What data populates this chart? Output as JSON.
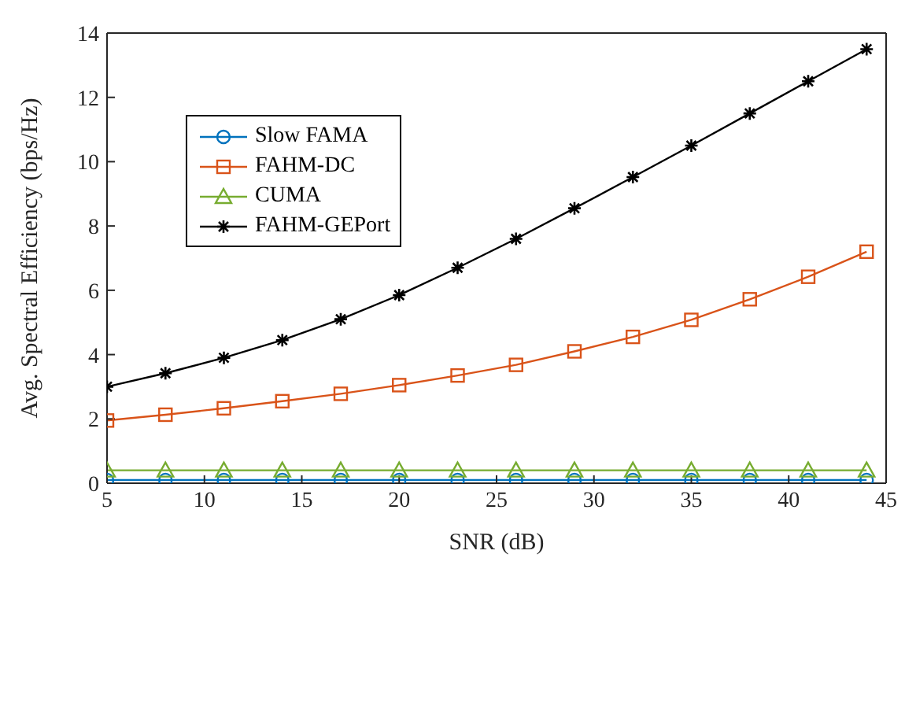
{
  "chart_data": {
    "type": "line",
    "xlabel": "SNR (dB)",
    "ylabel": "Avg. Spectral Efficiency (bps/Hz)",
    "x": [
      5,
      8,
      11,
      14,
      17,
      20,
      23,
      26,
      29,
      32,
      35,
      38,
      41,
      44
    ],
    "xlim": [
      5,
      45
    ],
    "xticks": [
      5,
      10,
      15,
      20,
      25,
      30,
      35,
      40,
      45
    ],
    "ylim": [
      0,
      14
    ],
    "yticks": [
      0,
      2,
      4,
      6,
      8,
      10,
      12,
      14
    ],
    "grid": false,
    "legend": "top left",
    "series": [
      {
        "name": "Slow FAMA",
        "color": "#0072bd",
        "marker": "circle",
        "values": [
          0.1,
          0.1,
          0.1,
          0.1,
          0.1,
          0.1,
          0.1,
          0.1,
          0.1,
          0.1,
          0.1,
          0.1,
          0.1,
          0.1
        ]
      },
      {
        "name": "FAHM-DC",
        "color": "#d95319",
        "marker": "square",
        "values": [
          1.95,
          2.13,
          2.33,
          2.55,
          2.78,
          3.05,
          3.35,
          3.68,
          4.1,
          4.55,
          5.08,
          5.72,
          6.42,
          7.2
        ]
      },
      {
        "name": "CUMA",
        "color": "#77ac30",
        "marker": "triangle",
        "values": [
          0.4,
          0.4,
          0.4,
          0.4,
          0.4,
          0.4,
          0.4,
          0.4,
          0.4,
          0.4,
          0.4,
          0.4,
          0.4,
          0.4
        ]
      },
      {
        "name": "FAHM-GEPort",
        "color": "#000000",
        "marker": "cross",
        "values": [
          3.0,
          3.42,
          3.9,
          4.45,
          5.1,
          5.85,
          6.7,
          7.6,
          8.55,
          9.52,
          10.5,
          11.5,
          12.5,
          13.5
        ]
      }
    ]
  }
}
